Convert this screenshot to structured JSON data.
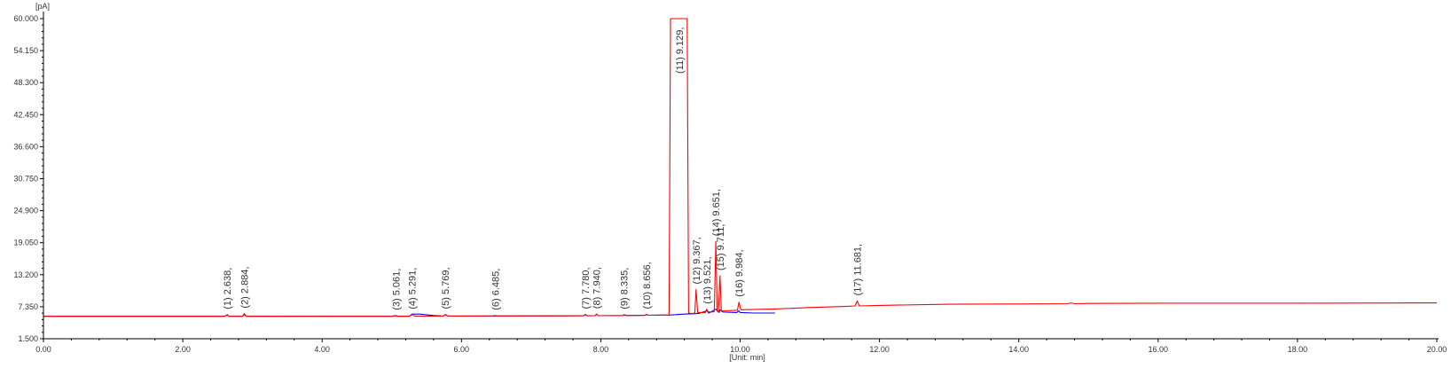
{
  "chart_data": {
    "type": "line",
    "title": "",
    "ylabel": "[pA]",
    "xlabel": "[Unit: min]",
    "xlim": [
      0,
      20
    ],
    "ylim": [
      1.5,
      60
    ],
    "x_ticks": [
      "0.00",
      "2.00",
      "4.00",
      "6.00",
      "8.00",
      "10.00",
      "12.00",
      "14.00",
      "16.00",
      "18.00",
      "20.00"
    ],
    "y_ticks": [
      "1.500",
      "7.350",
      "13.200",
      "19.050",
      "24.900",
      "30.750",
      "36.600",
      "42.450",
      "48.300",
      "54.150",
      "60.000"
    ],
    "colors": {
      "signal": "#ff0000",
      "baseline": "#0000ff",
      "axis": "#000000"
    },
    "series": [
      {
        "x": [
          0,
          2.6,
          2.638,
          2.66,
          2.86,
          2.884,
          2.91,
          5.0,
          5.061,
          5.08,
          5.25,
          5.291,
          5.33,
          5.74,
          5.769,
          5.8,
          6.45,
          6.485,
          6.5,
          7.75,
          7.78,
          7.8,
          7.92,
          7.94,
          7.96,
          8.32,
          8.335,
          8.36,
          8.63,
          8.656,
          8.68,
          8.98,
          9.0,
          9.02,
          9.129,
          9.24,
          9.26,
          9.3,
          9.35,
          9.367,
          9.39,
          9.45,
          9.5,
          9.521,
          9.54,
          9.6,
          9.63,
          9.651,
          9.67,
          9.69,
          9.711,
          9.73,
          9.96,
          9.984,
          10.01,
          10.5,
          11.0,
          11.5,
          11.65,
          11.681,
          11.71,
          12.0,
          13.0,
          14.0,
          14.7,
          14.75,
          14.8,
          15.0,
          16.0,
          18.0,
          20.0
        ],
        "y": [
          5.6,
          5.6,
          5.9,
          5.6,
          5.6,
          6.1,
          5.6,
          5.62,
          5.75,
          5.62,
          5.63,
          5.9,
          5.64,
          5.65,
          5.95,
          5.65,
          5.66,
          5.75,
          5.66,
          5.7,
          5.95,
          5.7,
          5.72,
          6.0,
          5.72,
          5.75,
          5.9,
          5.75,
          5.78,
          5.95,
          5.8,
          5.85,
          60,
          60,
          60,
          60,
          6.2,
          6.1,
          6.2,
          10.5,
          6.3,
          6.3,
          6.3,
          6.9,
          6.4,
          6.4,
          6.5,
          19.3,
          6.5,
          6.5,
          13.0,
          6.6,
          6.7,
          8.2,
          6.8,
          6.95,
          7.2,
          7.4,
          7.5,
          8.4,
          7.5,
          7.6,
          7.8,
          7.85,
          7.9,
          8.05,
          7.9,
          7.95,
          8.0,
          8.0,
          8.05
        ]
      },
      {
        "x": [
          0,
          2.6,
          2.638,
          2.66,
          2.86,
          2.884,
          2.91,
          5.0,
          5.061,
          5.08,
          5.25,
          5.291,
          5.4,
          5.6,
          5.74,
          5.769,
          5.8,
          7.75,
          7.78,
          7.8,
          7.92,
          7.94,
          7.96,
          8.32,
          8.335,
          8.36,
          8.63,
          8.656,
          8.68,
          9.0,
          9.2,
          9.4,
          9.521,
          9.55,
          9.651,
          9.7,
          9.711,
          9.75,
          9.95,
          9.984,
          10.0,
          10.2,
          10.5
        ],
        "y": [
          5.6,
          5.6,
          5.85,
          5.6,
          5.6,
          5.95,
          5.6,
          5.6,
          5.7,
          5.6,
          5.6,
          6.0,
          6.0,
          5.75,
          5.65,
          5.9,
          5.65,
          5.7,
          5.9,
          5.7,
          5.72,
          6.0,
          5.72,
          5.75,
          5.85,
          5.75,
          5.78,
          5.9,
          5.8,
          5.85,
          6.0,
          6.1,
          6.6,
          6.2,
          6.9,
          6.3,
          6.8,
          6.4,
          6.3,
          6.6,
          6.3,
          6.2,
          6.2
        ]
      }
    ],
    "peaks": [
      {
        "x": 2.638,
        "y": 5.9,
        "label": "(1) 2.638,"
      },
      {
        "x": 2.884,
        "y": 6.1,
        "label": "(2) 2.884,"
      },
      {
        "x": 5.061,
        "y": 5.75,
        "label": "(3) 5.061,"
      },
      {
        "x": 5.291,
        "y": 5.9,
        "label": "(4) 5.291,"
      },
      {
        "x": 5.769,
        "y": 5.95,
        "label": "(5) 5.769,"
      },
      {
        "x": 6.485,
        "y": 5.75,
        "label": "(6) 6.485,"
      },
      {
        "x": 7.78,
        "y": 5.95,
        "label": "(7) 7.780,"
      },
      {
        "x": 7.94,
        "y": 6.0,
        "label": "(8) 7.940,"
      },
      {
        "x": 8.335,
        "y": 5.9,
        "label": "(9) 8.335,"
      },
      {
        "x": 8.656,
        "y": 5.95,
        "label": "(10) 8.656,"
      },
      {
        "x": 9.129,
        "y": 60,
        "label": "(11) 9.129,"
      },
      {
        "x": 9.367,
        "y": 10.5,
        "label": "(12) 9.367,"
      },
      {
        "x": 9.521,
        "y": 6.9,
        "label": "(13) 9.521,"
      },
      {
        "x": 9.651,
        "y": 19.3,
        "label": "(14) 9.651,"
      },
      {
        "x": 9.711,
        "y": 13.0,
        "label": "(15) 9.711,"
      },
      {
        "x": 9.984,
        "y": 8.2,
        "label": "(16) 9.984,"
      },
      {
        "x": 11.681,
        "y": 8.4,
        "label": "(17) 11.681,"
      }
    ]
  }
}
